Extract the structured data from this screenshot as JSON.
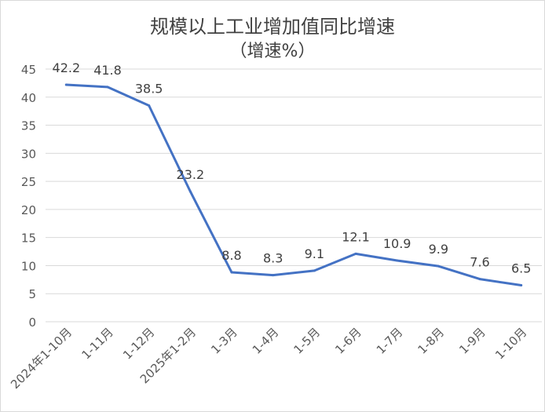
{
  "chart_data": {
    "type": "line",
    "title": "规模以上工业增加值同比增速",
    "subtitle": "（增速%）",
    "categories": [
      "2024年1-10月",
      "1-11月",
      "1-12月",
      "2025年1-2月",
      "1-3月",
      "1-4月",
      "1-5月",
      "1-6月",
      "1-7月",
      "1-8月",
      "1-9月",
      "1-10月"
    ],
    "series": [
      {
        "name": "增速",
        "values": [
          42.2,
          41.8,
          38.5,
          23.2,
          8.8,
          8.3,
          9.1,
          12.1,
          10.9,
          9.9,
          7.6,
          6.5
        ],
        "color": "#4472C4"
      }
    ],
    "yticks": [
      0,
      5,
      10,
      15,
      20,
      25,
      30,
      35,
      40,
      45
    ],
    "ylim": [
      0,
      45
    ],
    "grid": true,
    "legend": "none",
    "xlabel": "",
    "ylabel": ""
  }
}
